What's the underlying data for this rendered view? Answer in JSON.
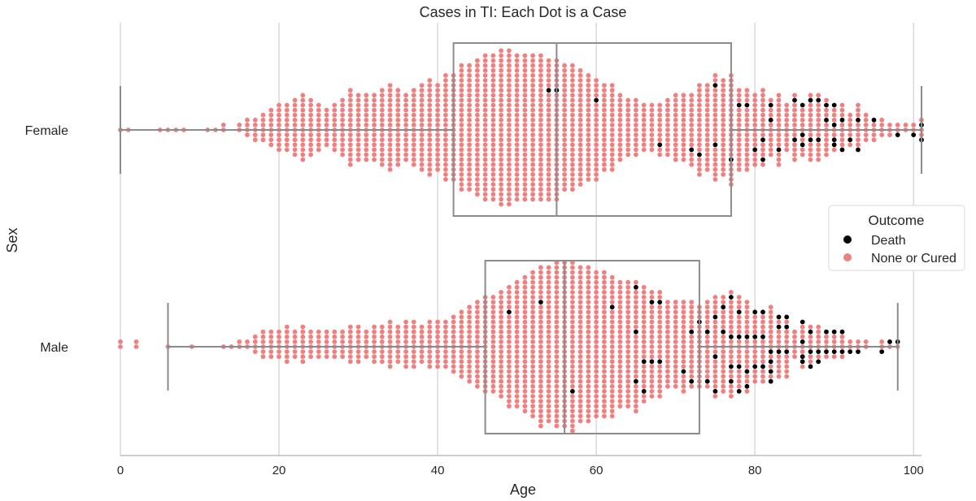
{
  "chart_data": {
    "type": "swarm",
    "title": "Cases in TI: Each Dot is a Case",
    "xlabel": "Age",
    "ylabel": "Sex",
    "xlim": [
      0,
      101
    ],
    "xticks": [
      0,
      20,
      40,
      60,
      80,
      100
    ],
    "xtick_labels": [
      "0",
      "20",
      "40",
      "60",
      "80",
      "100"
    ],
    "grid": "vertical",
    "categories": [
      "Female",
      "Male"
    ],
    "legend": {
      "title": "Outcome",
      "placement": "right",
      "entries": [
        {
          "label": "Death",
          "color": "#000000"
        },
        {
          "label": "None or Cured",
          "color": "#f08080"
        }
      ]
    },
    "boxes": [
      {
        "category": "Female",
        "whisker_low": 0,
        "q1": 42,
        "median": 55,
        "q3": 77,
        "whisker_high": 101
      },
      {
        "category": "Male",
        "whisker_low": 6,
        "q1": 46,
        "median": 56,
        "q3": 73,
        "whisker_high": 98
      }
    ],
    "series": [
      {
        "category": "Female",
        "outcome": "None or Cured",
        "counts_by_age": {
          "0": 1,
          "1": 1,
          "5": 1,
          "6": 1,
          "7": 1,
          "8": 1,
          "11": 1,
          "12": 1,
          "13": 2,
          "15": 2,
          "16": 4,
          "17": 5,
          "18": 6,
          "19": 8,
          "20": 10,
          "21": 10,
          "22": 12,
          "23": 14,
          "24": 12,
          "25": 10,
          "26": 8,
          "27": 10,
          "28": 12,
          "29": 16,
          "30": 14,
          "31": 14,
          "32": 14,
          "33": 16,
          "34": 18,
          "35": 16,
          "36": 14,
          "37": 16,
          "38": 18,
          "39": 20,
          "40": 18,
          "41": 22,
          "42": 22,
          "43": 26,
          "44": 26,
          "45": 28,
          "46": 30,
          "47": 30,
          "48": 32,
          "49": 32,
          "50": 30,
          "51": 30,
          "52": 30,
          "53": 30,
          "54": 28,
          "55": 28,
          "56": 26,
          "57": 26,
          "58": 24,
          "59": 22,
          "60": 20,
          "61": 18,
          "62": 18,
          "63": 14,
          "64": 12,
          "65": 12,
          "66": 10,
          "67": 10,
          "68": 10,
          "69": 12,
          "70": 14,
          "71": 14,
          "72": 14,
          "73": 18,
          "74": 18,
          "75": 20,
          "76": 20,
          "77": 22,
          "78": 16,
          "79": 16,
          "80": 14,
          "81": 14,
          "82": 10,
          "83": 14,
          "84": 10,
          "85": 12,
          "86": 8,
          "87": 12,
          "88": 12,
          "89": 10,
          "90": 6,
          "91": 8,
          "92": 6,
          "93": 8,
          "94": 6,
          "95": 4,
          "96": 4,
          "97": 3,
          "98": 2,
          "99": 2,
          "100": 2,
          "101": 3
        }
      },
      {
        "category": "Female",
        "outcome": "Death",
        "counts_by_age": {
          "54": 1,
          "55": 1,
          "60": 1,
          "68": 1,
          "72": 1,
          "73": 1,
          "75": 2,
          "77": 1,
          "78": 1,
          "79": 1,
          "80": 1,
          "81": 2,
          "82": 2,
          "83": 1,
          "85": 2,
          "86": 3,
          "87": 2,
          "88": 2,
          "89": 2,
          "90": 4,
          "91": 2,
          "92": 1,
          "93": 2,
          "95": 1,
          "98": 1,
          "100": 1,
          "101": 2
        }
      },
      {
        "category": "Male",
        "outcome": "None or Cured",
        "counts_by_age": {
          "0": 2,
          "2": 2,
          "6": 1,
          "9": 1,
          "13": 1,
          "14": 1,
          "15": 2,
          "16": 2,
          "17": 4,
          "18": 6,
          "19": 6,
          "20": 6,
          "21": 8,
          "22": 6,
          "23": 8,
          "24": 6,
          "25": 6,
          "26": 6,
          "27": 6,
          "28": 6,
          "29": 8,
          "30": 8,
          "31": 6,
          "32": 8,
          "33": 8,
          "34": 10,
          "35": 8,
          "36": 10,
          "37": 10,
          "38": 8,
          "39": 10,
          "40": 10,
          "41": 10,
          "42": 12,
          "43": 14,
          "44": 16,
          "45": 18,
          "46": 20,
          "47": 20,
          "48": 22,
          "49": 24,
          "50": 26,
          "51": 28,
          "52": 30,
          "53": 32,
          "54": 32,
          "55": 34,
          "56": 34,
          "57": 34,
          "58": 32,
          "59": 32,
          "60": 30,
          "61": 30,
          "62": 28,
          "63": 26,
          "64": 26,
          "65": 24,
          "66": 22,
          "67": 20,
          "68": 20,
          "69": 18,
          "70": 18,
          "71": 18,
          "72": 16,
          "73": 16,
          "74": 16,
          "75": 18,
          "76": 18,
          "77": 18,
          "78": 16,
          "79": 16,
          "80": 12,
          "81": 12,
          "82": 12,
          "83": 10,
          "84": 10,
          "85": 6,
          "86": 6,
          "87": 6,
          "88": 6,
          "89": 4,
          "90": 4,
          "91": 4,
          "92": 2,
          "93": 2,
          "94": 2,
          "96": 2,
          "97": 1,
          "98": 1
        }
      },
      {
        "category": "Male",
        "outcome": "Death",
        "counts_by_age": {
          "49": 1,
          "53": 1,
          "57": 1,
          "62": 1,
          "65": 3,
          "66": 2,
          "67": 2,
          "68": 2,
          "71": 1,
          "72": 2,
          "73": 1,
          "74": 2,
          "75": 3,
          "76": 2,
          "77": 4,
          "78": 4,
          "79": 3,
          "80": 3,
          "81": 3,
          "82": 4,
          "83": 3,
          "84": 3,
          "86": 4,
          "87": 3,
          "88": 2,
          "89": 2,
          "90": 2,
          "91": 2,
          "92": 1,
          "93": 1,
          "96": 1,
          "97": 1,
          "98": 1
        }
      }
    ]
  }
}
